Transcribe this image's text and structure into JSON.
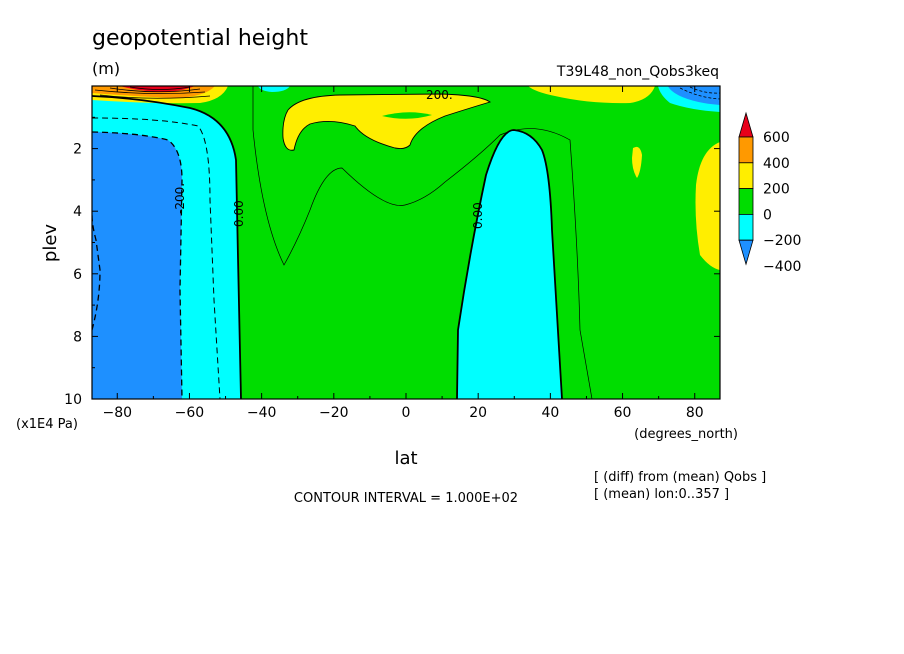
{
  "chart_data": {
    "type": "heatmap",
    "title": "geopotential height",
    "units": "(m)",
    "run_label": "T39L48_non_Qobs3keq",
    "xlabel": "lat",
    "x_units": "(degrees_north)",
    "ylabel": "plev",
    "y_units": "(x1E4 Pa)",
    "x_ticks": [
      "-80",
      "-60",
      "-40",
      "-20",
      "0",
      "20",
      "40",
      "60",
      "80"
    ],
    "y_ticks": [
      "2",
      "4",
      "6",
      "8",
      "10"
    ],
    "xlim": [
      -87,
      87
    ],
    "ylim": [
      0,
      10
    ],
    "contour_interval_text": "CONTOUR INTERVAL = 1.000E+02",
    "notes": [
      "[ (diff) from (mean) Qobs ]",
      "[ (mean) lon:0..357 ]"
    ],
    "colorbar": {
      "levels": [
        "600",
        "400",
        "200",
        "0",
        "-200",
        "-400"
      ],
      "colors": [
        "#e8001a",
        "#ff9900",
        "#ffee00",
        "#00dd00",
        "#00ffff",
        "#1e90ff"
      ]
    },
    "contour_labels": [
      "200.",
      "-200.",
      "0.00",
      "0.00"
    ]
  }
}
